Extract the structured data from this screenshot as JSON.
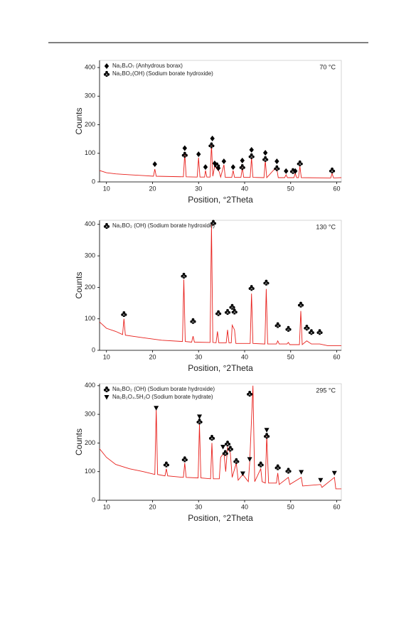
{
  "chart_data": [
    {
      "type": "line",
      "annotation": "70 °C",
      "xlabel": "Position, °2Theta",
      "ylabel": "Counts",
      "color": "#e8201c",
      "xlim": [
        8.5,
        61
      ],
      "ylim": [
        0,
        425
      ],
      "xticks": [
        10,
        20,
        30,
        40,
        50,
        60
      ],
      "yticks": [
        0,
        100,
        200,
        300,
        400
      ],
      "x": [
        8.5,
        10,
        12,
        15,
        18,
        20.2,
        20.5,
        20.8,
        26.7,
        27,
        27.3,
        29.7,
        30,
        30.3,
        31.3,
        31.5,
        31.8,
        32.5,
        32.8,
        33.1,
        33.5,
        34,
        34.5,
        34.8,
        35.5,
        35.8,
        37.2,
        37.5,
        37.8,
        39.2,
        39.5,
        39.8,
        41.2,
        41.5,
        41.8,
        44.2,
        44.5,
        44.8,
        46.5,
        47,
        47.3,
        48.7,
        49,
        49.3,
        50.7,
        51,
        51.3,
        51.7,
        52,
        52.3,
        58.7,
        59,
        59.3,
        61
      ],
      "values": [
        40,
        32,
        28,
        25,
        22,
        20,
        45,
        20,
        18,
        100,
        18,
        17,
        85,
        17,
        17,
        40,
        17,
        17,
        130,
        20,
        55,
        45,
        35,
        17,
        60,
        16,
        16,
        40,
        16,
        16,
        50,
        16,
        16,
        85,
        16,
        15,
        75,
        15,
        45,
        45,
        15,
        15,
        25,
        15,
        15,
        30,
        15,
        15,
        55,
        15,
        14,
        30,
        14,
        15
      ],
      "markers": [
        {
          "name": "Na₂B₄O₇ (Anhydrous borax)",
          "shape": "diamond",
          "x": [
            20.5,
            27,
            30,
            31.5,
            33,
            33.5,
            34.3,
            35.5,
            37.5,
            39.5,
            41.5,
            44.5,
            47,
            49,
            51
          ],
          "values": [
            62,
            118,
            97,
            52,
            152,
            65,
            48,
            72,
            52,
            75,
            112,
            102,
            72,
            38,
            38
          ]
        },
        {
          "name": "Na₂BO₂(OH)   (Sodium borate hydroxide)",
          "shape": "club",
          "x": [
            27,
            32.8,
            34,
            39.5,
            41.5,
            44.5,
            47,
            50.5,
            52,
            59
          ],
          "values": [
            95,
            128,
            58,
            52,
            90,
            80,
            48,
            38,
            65,
            40
          ]
        }
      ]
    },
    {
      "type": "line",
      "annotation": "130 °C",
      "xlabel": "Position, °2Theta",
      "ylabel": "Counts",
      "color": "#e8201c",
      "xlim": [
        8.5,
        61
      ],
      "ylim": [
        0,
        413
      ],
      "xticks": [
        10,
        20,
        30,
        40,
        50,
        60
      ],
      "yticks": [
        0,
        100,
        200,
        300,
        400
      ],
      "x": [
        8.5,
        10,
        12,
        13.5,
        13.8,
        14.1,
        18,
        22,
        26.5,
        26.8,
        27.1,
        28.5,
        28.8,
        29.1,
        32.5,
        32.8,
        33.1,
        33.8,
        34.1,
        34.4,
        36,
        36.3,
        36.6,
        37.1,
        37.3,
        37.8,
        38.1,
        41.2,
        41.5,
        41.8,
        44.4,
        44.7,
        45,
        46.9,
        47.2,
        47.5,
        49.2,
        49.5,
        49.8,
        51.9,
        52.2,
        52.5,
        53.5,
        54.5,
        56.3,
        58,
        61
      ],
      "values": [
        90,
        70,
        60,
        50,
        100,
        48,
        40,
        32,
        28,
        225,
        28,
        26,
        45,
        26,
        25,
        400,
        25,
        24,
        60,
        24,
        24,
        65,
        24,
        24,
        80,
        65,
        22,
        22,
        180,
        22,
        20,
        195,
        20,
        20,
        30,
        20,
        20,
        25,
        18,
        18,
        125,
        18,
        30,
        20,
        20,
        15,
        15
      ],
      "markers": [
        {
          "name": "Na₂BO₂ (OH)   (Sodium borate hydroxide)",
          "shape": "club",
          "x": [
            13.8,
            26.8,
            28.8,
            33.2,
            34.3,
            36.3,
            37.3,
            37.8,
            41.5,
            44.7,
            47.2,
            49.5,
            52.2,
            53.5,
            54.5,
            56.3
          ],
          "values": [
            115,
            237,
            93,
            405,
            118,
            122,
            138,
            123,
            198,
            215,
            80,
            68,
            145,
            72,
            58,
            58
          ]
        }
      ]
    },
    {
      "type": "line",
      "annotation": "295 °C",
      "xlabel": "Position, °2Theta",
      "ylabel": "Counts",
      "color": "#e8201c",
      "xlim": [
        8.5,
        61
      ],
      "ylim": [
        0,
        407
      ],
      "xticks": [
        10,
        20,
        30,
        40,
        50,
        60
      ],
      "yticks": [
        0,
        100,
        200,
        300,
        400
      ],
      "x": [
        8.5,
        10,
        12,
        15,
        18,
        20.5,
        20.8,
        21.1,
        22.7,
        23,
        23.3,
        26.7,
        27,
        27.3,
        29.9,
        30.2,
        30.5,
        32.6,
        32.9,
        33.2,
        34.5,
        34.8,
        35.5,
        35.9,
        36.3,
        36.9,
        37.3,
        38.2,
        38.6,
        39.6,
        40.8,
        41.1,
        41.8,
        42.2,
        43.5,
        43.8,
        44.5,
        44.8,
        45.2,
        46.9,
        47.2,
        47.5,
        49.5,
        49.8,
        52.3,
        52.6,
        56.5,
        56.8,
        59.5,
        59.8,
        61
      ],
      "values": [
        180,
        150,
        125,
        110,
        100,
        90,
        320,
        90,
        85,
        110,
        85,
        80,
        130,
        80,
        78,
        265,
        78,
        75,
        200,
        75,
        75,
        150,
        165,
        100,
        185,
        165,
        80,
        130,
        70,
        90,
        65,
        130,
        400,
        65,
        110,
        65,
        60,
        225,
        60,
        60,
        95,
        55,
        80,
        55,
        80,
        50,
        55,
        45,
        80,
        40,
        40
      ],
      "markers": [
        {
          "name": "Na₂BO₂ (OH) (Sodium borate hydroxide)",
          "shape": "club",
          "x": [
            23,
            27,
            30.2,
            32.9,
            35.8,
            36.3,
            36.9,
            38.2,
            41.1,
            43.5,
            44.8,
            47.2,
            49.5
          ],
          "values": [
            125,
            143,
            275,
            218,
            165,
            198,
            180,
            137,
            372,
            125,
            225,
            115,
            103
          ]
        },
        {
          "name": "Na₂B₂O₄.5H₂O (Sodium borate hydrate)",
          "shape": "triangle-down",
          "x": [
            20.8,
            30.2,
            35.3,
            39.6,
            41.1,
            44.8,
            52.3,
            56.5,
            59.5
          ],
          "values": [
            322,
            292,
            186,
            93,
            143,
            245,
            98,
            70,
            95
          ]
        }
      ]
    }
  ]
}
